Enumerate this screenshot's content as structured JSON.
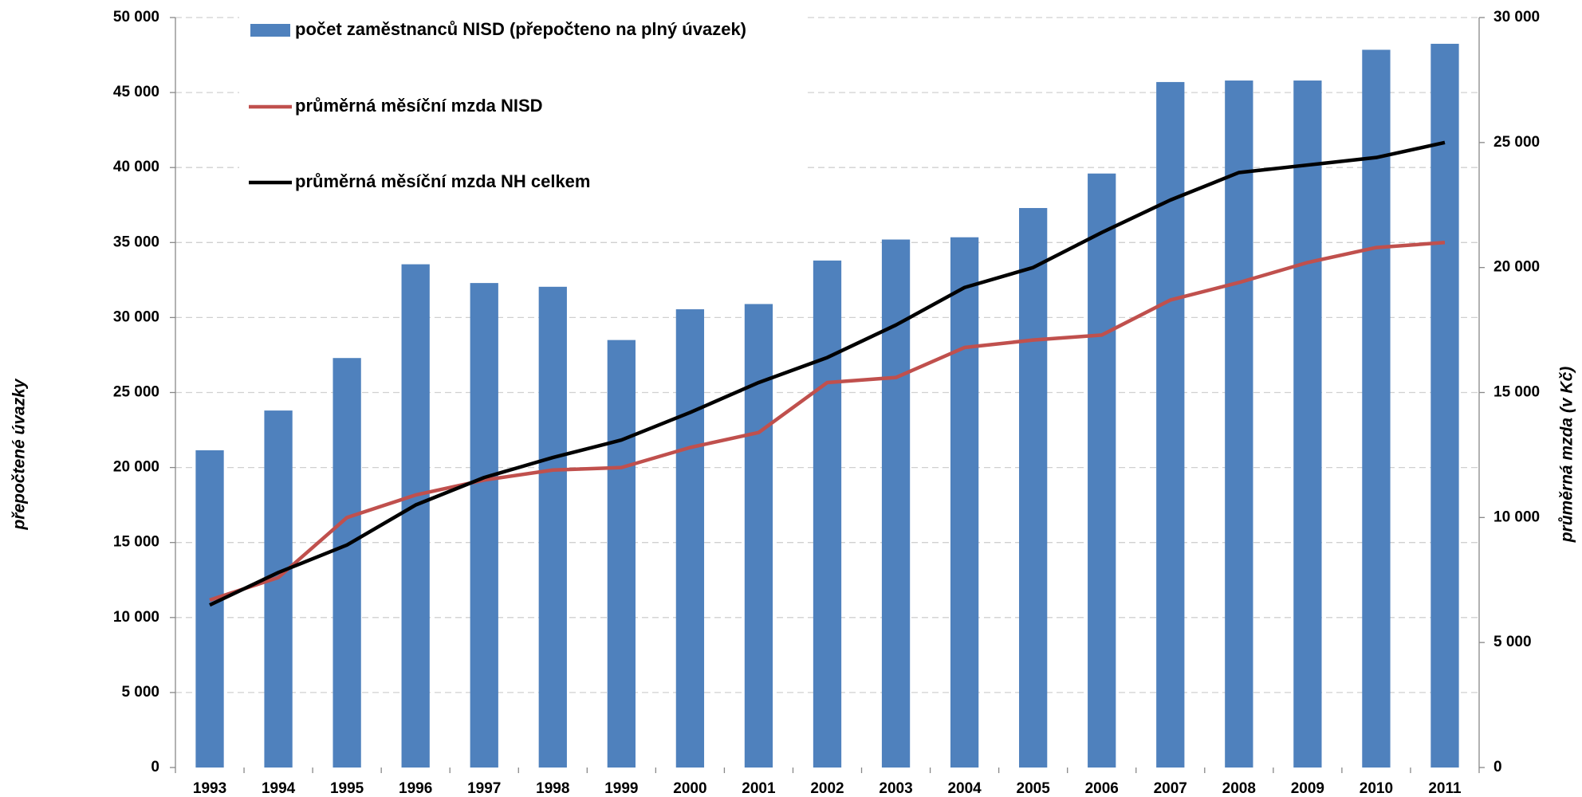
{
  "chart_data": {
    "type": "bar",
    "y_label": "přepočtené úvazky",
    "y2_label": "průměrná mzda (v Kč)",
    "categories": [
      "1993",
      "1994",
      "1995",
      "1996",
      "1997",
      "1998",
      "1999",
      "2000",
      "2001",
      "2002",
      "2003",
      "2004",
      "2005",
      "2006",
      "2007",
      "2008",
      "2009",
      "2010",
      "2011"
    ],
    "series": [
      {
        "name": "počet zaměstnanců NISD (přepočteno na plný úvazek)",
        "type": "bar",
        "axis": "y",
        "color": "#4f81bd",
        "values": [
          21150,
          23800,
          27300,
          33550,
          32300,
          32050,
          28500,
          30550,
          30900,
          33800,
          35200,
          35350,
          37300,
          39600,
          45700,
          45800,
          45800,
          47850,
          48250
        ]
      },
      {
        "name": "průměrná měsíční mzda NISD",
        "type": "line",
        "axis": "y2",
        "color": "#c0504d",
        "values": [
          6700,
          7600,
          10000,
          10900,
          11500,
          11900,
          12000,
          12800,
          13400,
          15400,
          15600,
          16800,
          17100,
          17300,
          18700,
          19400,
          20200,
          20800,
          21000
        ]
      },
      {
        "name": "průměrná měsíční mzda NH celkem",
        "type": "line",
        "axis": "y2",
        "color": "#000000",
        "values": [
          6500,
          7800,
          8900,
          10500,
          11600,
          12400,
          13100,
          14200,
          15400,
          16400,
          17700,
          19200,
          20000,
          21400,
          22700,
          23800,
          24100,
          24400,
          25000
        ]
      }
    ],
    "ylim": [
      0,
      50000
    ],
    "yticks": [
      0,
      {
        "value": 5000,
        "label": "5 000"
      },
      {
        "value": 10000,
        "label": "10 000"
      },
      {
        "value": 15000,
        "label": "15 000"
      },
      {
        "value": 20000,
        "label": "20 000"
      },
      {
        "value": 25000,
        "label": "25 000"
      },
      {
        "value": 30000,
        "label": "30 000"
      },
      {
        "value": 35000,
        "label": "35 000"
      },
      {
        "value": 40000,
        "label": "40 000"
      },
      {
        "value": 45000,
        "label": "45 000"
      },
      {
        "value": 50000,
        "label": "50 000"
      }
    ],
    "y2lim": [
      0,
      30000
    ],
    "y2ticks": [
      0,
      {
        "value": 5000,
        "label": "5 000"
      },
      {
        "value": 10000,
        "label": "10 000"
      },
      {
        "value": 15000,
        "label": "15 000"
      },
      {
        "value": 20000,
        "label": "20 000"
      },
      {
        "value": 25000,
        "label": "25 000"
      },
      {
        "value": 30000,
        "label": "30 000"
      }
    ],
    "grid": true,
    "legend": "top-left"
  }
}
